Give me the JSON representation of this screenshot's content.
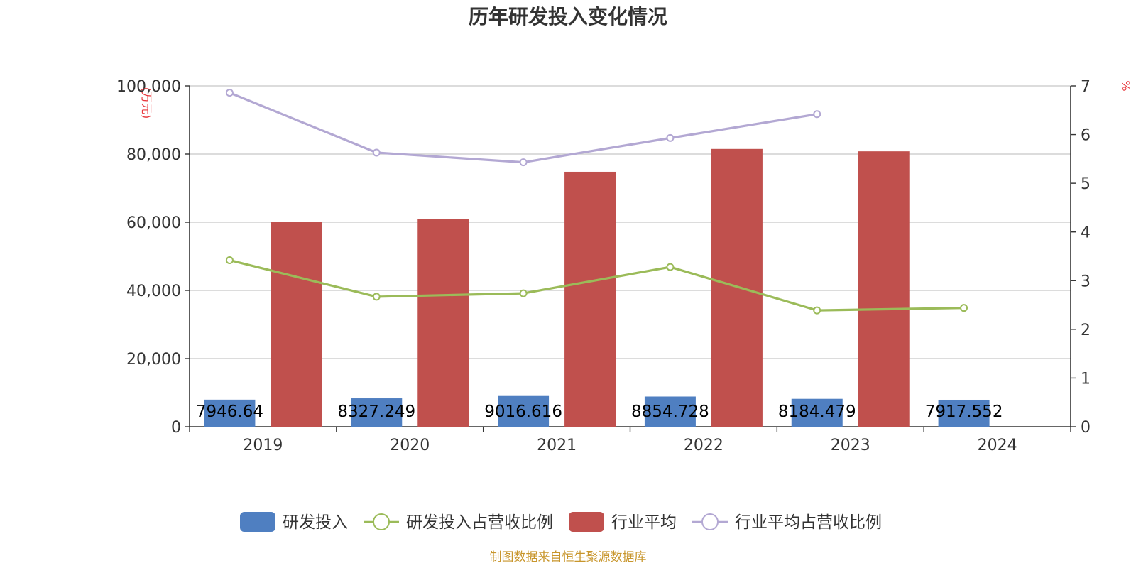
{
  "chart_data": {
    "type": "bar",
    "title": "历年研发投入变化情况",
    "categories": [
      "2019",
      "2020",
      "2021",
      "2022",
      "2023",
      "2024"
    ],
    "y_left": {
      "unit_label": "(万元)",
      "ylim": [
        0,
        100000
      ],
      "ticks": [
        {
          "value": 0,
          "label": "0"
        },
        {
          "value": 20000,
          "label": "20,000"
        },
        {
          "value": 40000,
          "label": "40,000"
        },
        {
          "value": 60000,
          "label": "60,000"
        },
        {
          "value": 80000,
          "label": "80,000"
        },
        {
          "value": 100000,
          "label": "100,000"
        }
      ]
    },
    "y_right": {
      "unit_label": "%",
      "ylim": [
        0,
        7
      ],
      "ticks": [
        {
          "value": 0,
          "label": "0"
        },
        {
          "value": 1,
          "label": "1"
        },
        {
          "value": 2,
          "label": "2"
        },
        {
          "value": 3,
          "label": "3"
        },
        {
          "value": 4,
          "label": "4"
        },
        {
          "value": 5,
          "label": "5"
        },
        {
          "value": 6,
          "label": "6"
        },
        {
          "value": 7,
          "label": "7"
        }
      ]
    },
    "grid": true,
    "legend_position": "bottom",
    "series": [
      {
        "name": "研发投入",
        "kind": "bar",
        "axis": "left",
        "color": "#4f7fc1",
        "values": [
          7946.64,
          8327.249,
          9016.616,
          8854.728,
          8184.479,
          7917.552
        ],
        "labels": [
          "7946.64",
          "8327.249",
          "9016.616",
          "8854.728",
          "8184.479",
          "7917.552"
        ]
      },
      {
        "name": "研发投入占营收比例",
        "kind": "line",
        "axis": "right",
        "color": "#9bbb59",
        "values": [
          3.42,
          2.67,
          2.74,
          3.28,
          2.39,
          2.44
        ]
      },
      {
        "name": "行业平均",
        "kind": "bar",
        "axis": "left",
        "color": "#c0504d",
        "values": [
          60000,
          61000,
          74800,
          81500,
          80800,
          null
        ]
      },
      {
        "name": "行业平均占营收比例",
        "kind": "line",
        "axis": "right",
        "color": "#b3a8d3",
        "values": [
          6.86,
          5.63,
          5.43,
          5.93,
          6.42,
          null
        ]
      }
    ],
    "source": "制图数据来自恒生聚源数据库"
  }
}
